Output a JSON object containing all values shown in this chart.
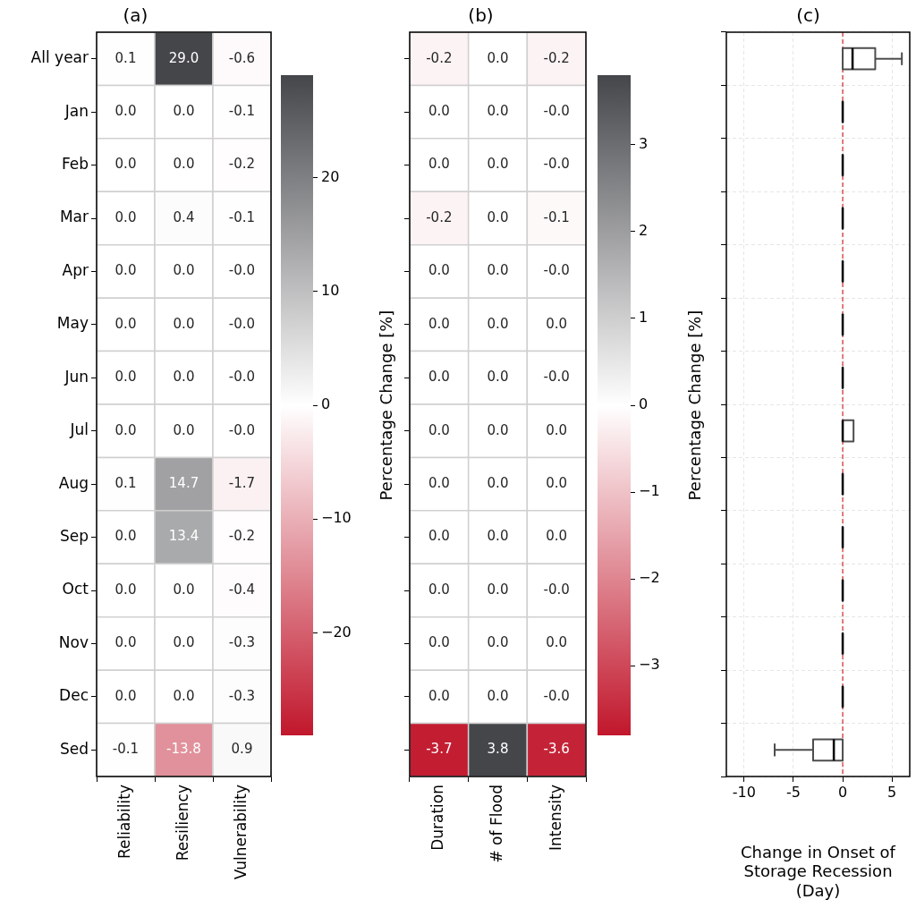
{
  "chart_data": [
    {
      "type": "heatmap",
      "title": "(a)",
      "categories": [
        "Reliability",
        "Resiliency",
        "Vulnerability"
      ],
      "y_categories": [
        "All year",
        "Jan",
        "Feb",
        "Mar",
        "Apr",
        "May",
        "Jun",
        "Jul",
        "Aug",
        "Sep",
        "Oct",
        "Nov",
        "Dec",
        "Sed"
      ],
      "cells": [
        [
          0.1,
          29.0,
          -0.6
        ],
        [
          0.0,
          0.0,
          -0.1
        ],
        [
          0.0,
          0.0,
          -0.2
        ],
        [
          0.0,
          0.4,
          -0.1
        ],
        [
          0.0,
          0.0,
          0.0
        ],
        [
          0.0,
          0.0,
          0.0
        ],
        [
          0.0,
          0.0,
          0.0
        ],
        [
          0.0,
          0.0,
          0.0
        ],
        [
          0.1,
          14.7,
          -1.7
        ],
        [
          0.0,
          13.4,
          -0.2
        ],
        [
          0.0,
          0.0,
          -0.4
        ],
        [
          0.0,
          0.0,
          -0.3
        ],
        [
          0.0,
          0.0,
          -0.3
        ],
        [
          -0.1,
          -13.8,
          0.9
        ]
      ],
      "cell_labels": [
        [
          "0.1",
          "29.0",
          "-0.6"
        ],
        [
          "0.0",
          "0.0",
          "-0.1"
        ],
        [
          "0.0",
          "0.0",
          "-0.2"
        ],
        [
          "0.0",
          "0.4",
          "-0.1"
        ],
        [
          "0.0",
          "0.0",
          "-0.0"
        ],
        [
          "0.0",
          "0.0",
          "-0.0"
        ],
        [
          "0.0",
          "0.0",
          "-0.0"
        ],
        [
          "0.0",
          "0.0",
          "-0.0"
        ],
        [
          "0.1",
          "14.7",
          "-1.7"
        ],
        [
          "0.0",
          "13.4",
          "-0.2"
        ],
        [
          "0.0",
          "0.0",
          "-0.4"
        ],
        [
          "0.0",
          "0.0",
          "-0.3"
        ],
        [
          "0.0",
          "0.0",
          "-0.3"
        ],
        [
          "-0.1",
          "-13.8",
          "0.9"
        ]
      ],
      "clim": [
        -29,
        29
      ],
      "cticks": [
        -20,
        -10,
        0,
        10,
        20
      ],
      "clabel": "Percentage Change [%]"
    },
    {
      "type": "heatmap",
      "title": "(b)",
      "categories": [
        "Duration",
        "# of Flood",
        "Intensity"
      ],
      "y_categories": [
        null,
        null,
        null,
        null,
        null,
        null,
        null,
        null,
        null,
        null,
        null,
        null,
        null,
        null
      ],
      "cells": [
        [
          -0.2,
          0.0,
          -0.2
        ],
        [
          0.0,
          0.0,
          0.0
        ],
        [
          0.0,
          0.0,
          0.0
        ],
        [
          -0.2,
          0.0,
          -0.1
        ],
        [
          0.0,
          0.0,
          0.0
        ],
        [
          0.0,
          0.0,
          0.0
        ],
        [
          0.0,
          0.0,
          0.0
        ],
        [
          0.0,
          0.0,
          0.0
        ],
        [
          0.0,
          0.0,
          0.0
        ],
        [
          0.0,
          0.0,
          0.0
        ],
        [
          0.0,
          0.0,
          0.0
        ],
        [
          0.0,
          0.0,
          0.0
        ],
        [
          0.0,
          0.0,
          0.0
        ],
        [
          -3.7,
          3.8,
          -3.6
        ]
      ],
      "cell_labels": [
        [
          "-0.2",
          "0.0",
          "-0.2"
        ],
        [
          "0.0",
          "0.0",
          "-0.0"
        ],
        [
          "0.0",
          "0.0",
          "-0.0"
        ],
        [
          "-0.2",
          "0.0",
          "-0.1"
        ],
        [
          "0.0",
          "0.0",
          "-0.0"
        ],
        [
          "0.0",
          "0.0",
          "0.0"
        ],
        [
          "0.0",
          "0.0",
          "-0.0"
        ],
        [
          "0.0",
          "0.0",
          "0.0"
        ],
        [
          "0.0",
          "0.0",
          "0.0"
        ],
        [
          "0.0",
          "0.0",
          "0.0"
        ],
        [
          "0.0",
          "0.0",
          "-0.0"
        ],
        [
          "0.0",
          "0.0",
          "0.0"
        ],
        [
          "0.0",
          "0.0",
          "-0.0"
        ],
        [
          "-3.7",
          "3.8",
          "-3.6"
        ]
      ],
      "clim": [
        -3.8,
        3.8
      ],
      "cticks": [
        -3,
        -2,
        -1,
        0,
        1,
        2,
        3
      ],
      "clabel": "Percentage Change [%]",
      "tick_labels": "x"
    },
    {
      "type": "box",
      "title": "(c)",
      "xlabel": "Change in Onset of Storage Recession (Day)",
      "orientation": "horizontal",
      "categories": [
        null,
        null,
        null,
        null,
        null,
        null,
        null,
        null,
        null,
        null,
        null,
        null,
        null,
        null
      ],
      "boxes": [
        {
          "low": 0,
          "q1": 0,
          "median": 1.0,
          "q3": 3.3,
          "high": 6.0
        },
        {
          "low": 0,
          "q1": 0,
          "median": 0,
          "q3": 0,
          "high": 0
        },
        {
          "low": 0,
          "q1": 0,
          "median": 0,
          "q3": 0,
          "high": 0
        },
        {
          "low": 0,
          "q1": 0,
          "median": 0,
          "q3": 0,
          "high": 0
        },
        {
          "low": 0,
          "q1": 0,
          "median": 0,
          "q3": 0,
          "high": 0
        },
        {
          "low": 0,
          "q1": 0,
          "median": 0,
          "q3": 0,
          "high": 0
        },
        {
          "low": 0,
          "q1": 0,
          "median": 0,
          "q3": 0,
          "high": 0
        },
        {
          "low": 0,
          "q1": 0,
          "median": 0,
          "q3": 1.1,
          "high": 1.1
        },
        {
          "low": 0,
          "q1": 0,
          "median": 0,
          "q3": 0,
          "high": 0
        },
        {
          "low": 0,
          "q1": 0,
          "median": 0,
          "q3": 0,
          "high": 0
        },
        {
          "low": 0,
          "q1": 0,
          "median": 0,
          "q3": 0,
          "high": 0
        },
        {
          "low": 0,
          "q1": 0,
          "median": 0,
          "q3": 0,
          "high": 0
        },
        {
          "low": 0,
          "q1": 0,
          "median": 0,
          "q3": 0,
          "high": 0
        },
        {
          "low": -6.9,
          "q1": -3.0,
          "median": -0.9,
          "q3": 0,
          "high": 0
        }
      ],
      "xlim": [
        -11.8,
        6.8
      ],
      "xticks": [
        -10,
        -5,
        0,
        5
      ],
      "grid": true,
      "tick_labels": "x",
      "ref_lines": [
        {
          "axis": "x",
          "value": 0,
          "color": "#d62728",
          "line_style": "dashed"
        }
      ]
    }
  ]
}
